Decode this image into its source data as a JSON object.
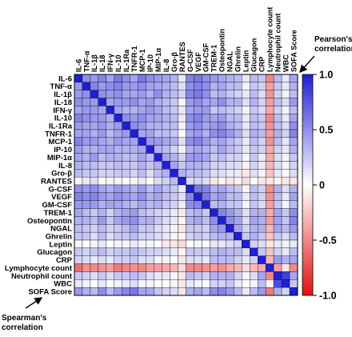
{
  "chart_data": {
    "type": "heatmap",
    "title": "",
    "variables": [
      "IL-6",
      "TNF-α",
      "IL-1β",
      "IL-18",
      "IFN-γ",
      "IL-10",
      "IL-1Ra",
      "TNFR-1",
      "MCP-1",
      "IP-10",
      "MIP-1α",
      "IL-8",
      "Gro-β",
      "RANTES",
      "G-CSF",
      "VEGF",
      "GM-CSF",
      "TREM-1",
      "Osteopontin",
      "NGAL",
      "Ghrelin",
      "Leptin",
      "Glucagon",
      "CRP",
      "Lymphocyte count",
      "Neutrophil count",
      "WBC",
      "SOFA Score"
    ],
    "x_labels": [
      "IL-6",
      "TNF-α",
      "IL-1β",
      "IL-18",
      "IFN-γ",
      "IL-10",
      "IL-1Ra",
      "TNFR-1",
      "MCP-1",
      "IP-10",
      "MIP-1α",
      "IL-8",
      "Gro-β",
      "RANTES",
      "G-CSF",
      "VEGF",
      "GM-CSF",
      "TREM-1",
      "Osteopontin",
      "NGAL",
      "Ghrelin",
      "Leptin",
      "Glucagon",
      "CRP",
      "Lymphocyte count",
      "Neutrophil count",
      "WBC",
      "SOFA Score"
    ],
    "upper_triangle": "Pearson's correlation",
    "lower_triangle": "Spearman's correlation",
    "colorbar": {
      "min": -1.0,
      "max": 1.0,
      "ticks": [
        1.0,
        0.5,
        0,
        -0.5,
        -1.0
      ],
      "tick_labels": [
        "1.0",
        "0.5",
        "0",
        "-0.5",
        "-1.0"
      ],
      "colors": {
        "positive": "#1f1fd6",
        "zero": "#ffffff",
        "negative": "#e01010"
      }
    },
    "matrix": [
      [
        1,
        0.5,
        0.45,
        0.55,
        0.4,
        0.6,
        0.5,
        0.4,
        0.6,
        0.5,
        0.45,
        0.4,
        0.35,
        0.1,
        0.55,
        0.6,
        0.5,
        0.45,
        0.4,
        0.35,
        0.3,
        0.1,
        0.3,
        0.25,
        -0.5,
        0.3,
        0.1,
        0.4
      ],
      [
        0.45,
        1,
        0.55,
        0.45,
        0.5,
        0.55,
        0.45,
        0.45,
        0.5,
        0.4,
        0.4,
        0.35,
        0.3,
        0.15,
        0.5,
        0.55,
        0.5,
        0.35,
        0.4,
        0.3,
        0.3,
        0.05,
        0.25,
        0.2,
        -0.4,
        0.25,
        0.1,
        0.35
      ],
      [
        0.45,
        0.5,
        1,
        0.5,
        0.45,
        0.5,
        0.4,
        0.4,
        0.45,
        0.35,
        0.5,
        0.35,
        0.3,
        0.2,
        0.55,
        0.6,
        0.5,
        0.3,
        0.35,
        0.25,
        0.2,
        0.1,
        0.3,
        0.15,
        -0.45,
        0.2,
        0.05,
        0.3
      ],
      [
        0.5,
        0.45,
        0.45,
        1,
        0.4,
        0.45,
        0.45,
        0.5,
        0.4,
        0.45,
        0.35,
        0.3,
        0.25,
        0.05,
        0.45,
        0.5,
        0.4,
        0.4,
        0.5,
        0.35,
        0.35,
        0.15,
        0.35,
        0.2,
        -0.4,
        0.3,
        0.15,
        0.45
      ],
      [
        0.4,
        0.45,
        0.45,
        0.4,
        1,
        0.4,
        0.35,
        0.35,
        0.4,
        0.45,
        0.4,
        0.3,
        0.25,
        0.1,
        0.4,
        0.45,
        0.45,
        0.25,
        0.3,
        0.25,
        0.2,
        0.05,
        0.25,
        0.15,
        -0.35,
        0.2,
        0.05,
        0.3
      ],
      [
        0.55,
        0.5,
        0.45,
        0.45,
        0.35,
        1,
        0.5,
        0.45,
        0.5,
        0.4,
        0.4,
        0.35,
        0.3,
        0.1,
        0.5,
        0.55,
        0.45,
        0.4,
        0.45,
        0.3,
        0.3,
        0.1,
        0.3,
        0.25,
        -0.5,
        0.3,
        0.1,
        0.4
      ],
      [
        0.45,
        0.4,
        0.4,
        0.45,
        0.35,
        0.45,
        1,
        0.5,
        0.45,
        0.35,
        0.35,
        0.3,
        0.3,
        0.05,
        0.45,
        0.5,
        0.4,
        0.45,
        0.5,
        0.35,
        0.3,
        0.1,
        0.3,
        0.25,
        -0.45,
        0.3,
        0.15,
        0.5
      ],
      [
        0.4,
        0.4,
        0.35,
        0.45,
        0.3,
        0.4,
        0.45,
        1,
        0.4,
        0.4,
        0.3,
        0.3,
        0.25,
        0.0,
        0.4,
        0.45,
        0.35,
        0.5,
        0.55,
        0.45,
        0.35,
        0.15,
        0.35,
        0.3,
        -0.4,
        0.35,
        0.2,
        0.55
      ],
      [
        0.55,
        0.45,
        0.45,
        0.4,
        0.35,
        0.45,
        0.4,
        0.4,
        1,
        0.45,
        0.45,
        0.4,
        0.35,
        0.15,
        0.5,
        0.55,
        0.45,
        0.35,
        0.4,
        0.3,
        0.25,
        0.1,
        0.3,
        0.2,
        -0.45,
        0.3,
        0.1,
        0.4
      ],
      [
        0.45,
        0.35,
        0.35,
        0.4,
        0.4,
        0.35,
        0.35,
        0.35,
        0.4,
        1,
        0.35,
        0.3,
        0.2,
        0.05,
        0.35,
        0.4,
        0.35,
        0.3,
        0.4,
        0.3,
        0.25,
        0.1,
        0.25,
        0.2,
        -0.35,
        0.2,
        0.1,
        0.35
      ],
      [
        0.4,
        0.35,
        0.45,
        0.3,
        0.35,
        0.35,
        0.3,
        0.3,
        0.4,
        0.3,
        1,
        0.4,
        0.35,
        0.2,
        0.45,
        0.45,
        0.4,
        0.25,
        0.3,
        0.2,
        0.2,
        0.05,
        0.25,
        0.1,
        -0.35,
        0.15,
        0.05,
        0.25
      ],
      [
        0.35,
        0.3,
        0.3,
        0.25,
        0.25,
        0.3,
        0.25,
        0.25,
        0.35,
        0.25,
        0.35,
        1,
        0.4,
        0.25,
        0.35,
        0.35,
        0.3,
        0.2,
        0.2,
        0.15,
        0.15,
        -0.05,
        0.2,
        0.1,
        -0.3,
        0.15,
        0.05,
        0.2
      ],
      [
        0.3,
        0.25,
        0.25,
        0.2,
        0.2,
        0.25,
        0.25,
        0.2,
        0.3,
        0.15,
        0.3,
        0.35,
        1,
        0.35,
        0.3,
        0.3,
        0.25,
        0.15,
        0.15,
        0.1,
        0.1,
        -0.1,
        0.15,
        0.05,
        -0.25,
        0.1,
        0.0,
        0.15
      ],
      [
        0.05,
        0.1,
        0.15,
        0.0,
        0.05,
        0.05,
        0.0,
        -0.05,
        0.1,
        0.0,
        0.15,
        0.2,
        0.3,
        1,
        0.15,
        0.2,
        0.15,
        -0.1,
        -0.05,
        -0.1,
        -0.05,
        -0.15,
        0.0,
        -0.1,
        -0.1,
        -0.05,
        -0.1,
        -0.1
      ],
      [
        0.5,
        0.45,
        0.5,
        0.4,
        0.35,
        0.45,
        0.4,
        0.35,
        0.45,
        0.3,
        0.4,
        0.3,
        0.25,
        0.1,
        1,
        0.6,
        0.55,
        0.35,
        0.4,
        0.3,
        0.25,
        0.05,
        0.3,
        0.2,
        -0.45,
        0.35,
        0.15,
        0.35
      ],
      [
        0.55,
        0.5,
        0.55,
        0.45,
        0.4,
        0.5,
        0.45,
        0.4,
        0.5,
        0.35,
        0.4,
        0.3,
        0.25,
        0.15,
        0.55,
        1,
        0.6,
        0.4,
        0.45,
        0.3,
        0.3,
        0.1,
        0.3,
        0.2,
        -0.45,
        0.3,
        0.1,
        0.4
      ],
      [
        0.45,
        0.45,
        0.45,
        0.35,
        0.4,
        0.4,
        0.35,
        0.3,
        0.4,
        0.3,
        0.35,
        0.25,
        0.2,
        0.1,
        0.5,
        0.55,
        1,
        0.3,
        0.35,
        0.25,
        0.25,
        0.05,
        0.25,
        0.15,
        -0.4,
        0.25,
        0.05,
        0.3
      ],
      [
        0.4,
        0.3,
        0.25,
        0.35,
        0.2,
        0.35,
        0.4,
        0.45,
        0.3,
        0.25,
        0.2,
        0.15,
        0.1,
        -0.1,
        0.3,
        0.35,
        0.25,
        1,
        0.55,
        0.45,
        0.35,
        0.15,
        0.35,
        0.35,
        -0.35,
        0.4,
        0.25,
        0.5
      ],
      [
        0.35,
        0.35,
        0.3,
        0.45,
        0.25,
        0.4,
        0.45,
        0.5,
        0.35,
        0.35,
        0.25,
        0.15,
        0.1,
        -0.05,
        0.35,
        0.4,
        0.3,
        0.5,
        1,
        0.5,
        0.4,
        0.15,
        0.4,
        0.35,
        -0.4,
        0.4,
        0.25,
        0.55
      ],
      [
        0.3,
        0.25,
        0.2,
        0.3,
        0.2,
        0.25,
        0.3,
        0.4,
        0.25,
        0.25,
        0.15,
        0.1,
        0.05,
        -0.1,
        0.25,
        0.25,
        0.2,
        0.4,
        0.45,
        1,
        0.4,
        0.2,
        0.35,
        0.35,
        -0.3,
        0.4,
        0.3,
        0.45
      ],
      [
        0.25,
        0.25,
        0.15,
        0.3,
        0.15,
        0.25,
        0.25,
        0.3,
        0.2,
        0.2,
        0.15,
        0.1,
        0.05,
        -0.05,
        0.2,
        0.25,
        0.2,
        0.3,
        0.35,
        0.35,
        1,
        0.25,
        0.35,
        0.25,
        -0.25,
        0.25,
        0.15,
        0.3
      ],
      [
        0.05,
        0.0,
        0.05,
        0.1,
        0.0,
        0.05,
        0.05,
        0.1,
        0.05,
        0.05,
        0.0,
        -0.1,
        -0.1,
        -0.15,
        0.0,
        0.05,
        0.0,
        0.1,
        0.1,
        0.15,
        0.2,
        1,
        0.2,
        0.15,
        -0.1,
        0.1,
        0.05,
        0.1
      ],
      [
        0.25,
        0.2,
        0.25,
        0.3,
        0.2,
        0.25,
        0.25,
        0.3,
        0.25,
        0.2,
        0.2,
        0.15,
        0.1,
        -0.05,
        0.25,
        0.25,
        0.2,
        0.3,
        0.35,
        0.3,
        0.3,
        0.15,
        1,
        0.25,
        -0.25,
        0.2,
        0.1,
        0.3
      ],
      [
        0.2,
        0.15,
        0.1,
        0.15,
        0.1,
        0.2,
        0.2,
        0.25,
        0.15,
        0.15,
        0.05,
        0.05,
        0.0,
        -0.1,
        0.15,
        0.15,
        0.1,
        0.3,
        0.3,
        0.3,
        0.2,
        0.1,
        0.2,
        1,
        -0.3,
        0.45,
        0.35,
        0.4
      ],
      [
        -0.6,
        -0.45,
        -0.5,
        -0.45,
        -0.4,
        -0.55,
        -0.5,
        -0.45,
        -0.5,
        -0.4,
        -0.4,
        -0.35,
        -0.3,
        -0.15,
        -0.5,
        -0.5,
        -0.45,
        -0.4,
        -0.45,
        -0.35,
        -0.3,
        -0.15,
        -0.3,
        -0.35,
        1,
        -0.4,
        -0.1,
        -0.5
      ],
      [
        0.25,
        0.2,
        0.15,
        0.25,
        0.15,
        0.25,
        0.25,
        0.3,
        0.25,
        0.15,
        0.1,
        0.1,
        0.05,
        -0.1,
        0.3,
        0.25,
        0.2,
        0.35,
        0.35,
        0.35,
        0.2,
        0.05,
        0.15,
        0.4,
        -0.5,
        1,
        0.85,
        0.4
      ],
      [
        0.1,
        0.05,
        0.0,
        0.1,
        0.0,
        0.05,
        0.1,
        0.15,
        0.05,
        0.05,
        0.0,
        0.0,
        -0.05,
        -0.1,
        0.1,
        0.05,
        0.0,
        0.2,
        0.2,
        0.25,
        0.1,
        0.0,
        0.05,
        0.3,
        -0.05,
        0.8,
        1,
        0.25
      ],
      [
        0.45,
        0.35,
        0.3,
        0.5,
        0.3,
        0.45,
        0.55,
        0.6,
        0.4,
        0.4,
        0.25,
        0.2,
        0.15,
        -0.1,
        0.35,
        0.4,
        0.3,
        0.5,
        0.55,
        0.45,
        0.3,
        0.1,
        0.3,
        0.45,
        -0.55,
        0.35,
        0.2,
        1
      ]
    ]
  },
  "annotations": {
    "pearson_line1": "Pearson's",
    "pearson_line2": "correlation",
    "spearman_line1": "Spearman's",
    "spearman_line2": "correlation"
  }
}
